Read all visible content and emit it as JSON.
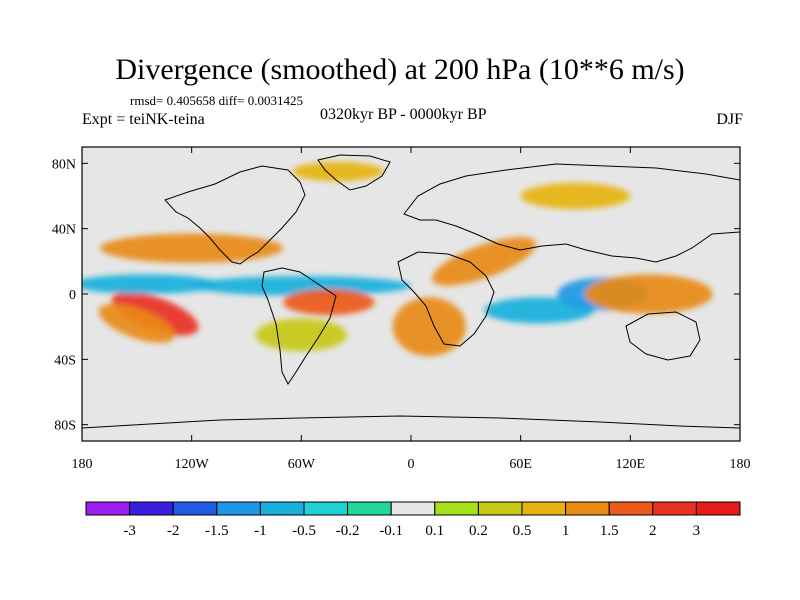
{
  "title": "Divergence (smoothed) at 200 hPa (10**6 m/s)",
  "stats": "rmsd= 0.405658 diff= 0.0031425",
  "experiment": "Expt = teiNK-teina",
  "period": "0320kyr BP - 0000kyr BP",
  "season": "DJF",
  "map": {
    "projection": "cylindrical-equidistant",
    "lon_range": [
      -180,
      180
    ],
    "lat_range": [
      -90,
      90
    ],
    "lon_ticks": [
      {
        "value": -180,
        "label": "180"
      },
      {
        "value": -120,
        "label": "120W"
      },
      {
        "value": -60,
        "label": "60W"
      },
      {
        "value": 0,
        "label": "0"
      },
      {
        "value": 60,
        "label": "60E"
      },
      {
        "value": 120,
        "label": "120E"
      },
      {
        "value": 180,
        "label": "180"
      }
    ],
    "lat_ticks": [
      {
        "value": 80,
        "label": "80N"
      },
      {
        "value": 40,
        "label": "40N"
      },
      {
        "value": 0,
        "label": "0"
      },
      {
        "value": -40,
        "label": "40S"
      },
      {
        "value": -80,
        "label": "80S"
      }
    ],
    "background_color": "#e6e6e6"
  },
  "colorbar": {
    "labels": [
      "-3",
      "-2",
      "-1.5",
      "-1",
      "-0.5",
      "-0.2",
      "-0.1",
      "0.1",
      "0.2",
      "0.5",
      "1",
      "1.5",
      "2",
      "3"
    ],
    "colors": [
      "#9d1ff0",
      "#3a1ee0",
      "#1f5be6",
      "#1c98e6",
      "#1ab0dc",
      "#1fd1d1",
      "#24d79b",
      "#e6e6e6",
      "#a5e01a",
      "#c8c814",
      "#e6b412",
      "#e88a14",
      "#ec5a1a",
      "#ea3222",
      "#e81a1a"
    ]
  },
  "anomalies": [
    {
      "lon": -140,
      "lat": -12,
      "rx": 25,
      "ry": 10,
      "rot": 20,
      "level": 13
    },
    {
      "lon": -150,
      "lat": -18,
      "rx": 22,
      "ry": 9,
      "rot": 20,
      "level": 11
    },
    {
      "lon": -145,
      "lat": 6,
      "rx": 40,
      "ry": 6,
      "rot": 0,
      "level": 4
    },
    {
      "lon": -120,
      "lat": 28,
      "rx": 50,
      "ry": 9,
      "rot": 0,
      "level": 11
    },
    {
      "lon": -60,
      "lat": 5,
      "rx": 60,
      "ry": 6,
      "rot": 0,
      "level": 4
    },
    {
      "lon": -45,
      "lat": -5,
      "rx": 25,
      "ry": 8,
      "rot": 0,
      "level": 12
    },
    {
      "lon": -60,
      "lat": -25,
      "rx": 25,
      "ry": 10,
      "rot": 0,
      "level": 9
    },
    {
      "lon": 10,
      "lat": -20,
      "rx": 20,
      "ry": 18,
      "rot": 0,
      "level": 11
    },
    {
      "lon": 40,
      "lat": 20,
      "rx": 30,
      "ry": 10,
      "rot": -20,
      "level": 11
    },
    {
      "lon": 70,
      "lat": -10,
      "rx": 30,
      "ry": 8,
      "rot": 0,
      "level": 4
    },
    {
      "lon": 105,
      "lat": 0,
      "rx": 25,
      "ry": 10,
      "rot": 0,
      "level": 3
    },
    {
      "lon": 130,
      "lat": 0,
      "rx": 35,
      "ry": 12,
      "rot": 0,
      "level": 11
    },
    {
      "lon": -40,
      "lat": 75,
      "rx": 25,
      "ry": 6,
      "rot": 0,
      "level": 10
    },
    {
      "lon": 90,
      "lat": 60,
      "rx": 30,
      "ry": 8,
      "rot": 0,
      "level": 10
    }
  ]
}
